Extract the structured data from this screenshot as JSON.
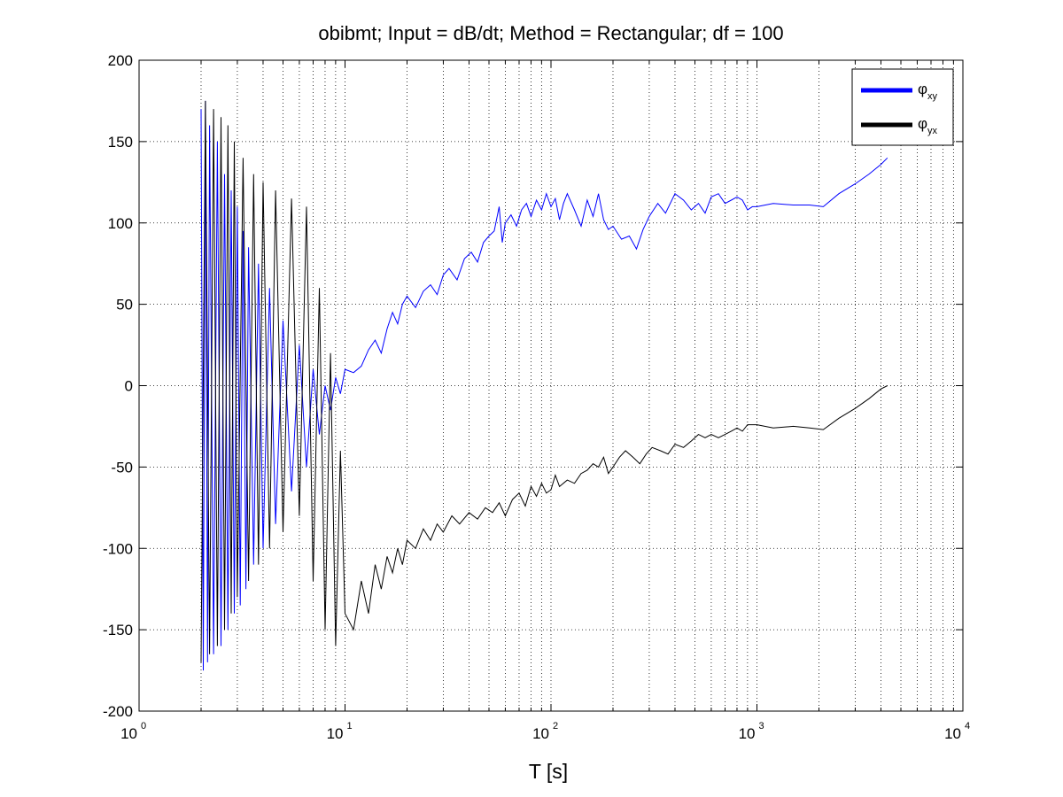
{
  "chart_data": {
    "type": "line",
    "title": "obibmt; Input = dB/dt; Method = Rectangular; df = 100",
    "xlabel": "T [s]",
    "ylabel": "",
    "xscale": "log",
    "xlim": [
      1,
      10000
    ],
    "ylim": [
      -200,
      200
    ],
    "yticks": [
      "-200",
      "-150",
      "-100",
      "-50",
      "0",
      "50",
      "100",
      "150",
      "200"
    ],
    "xticks": [
      {
        "base": "10",
        "exp": "0",
        "value": 1
      },
      {
        "base": "10",
        "exp": "1",
        "value": 10
      },
      {
        "base": "10",
        "exp": "2",
        "value": 100
      },
      {
        "base": "10",
        "exp": "3",
        "value": 1000
      },
      {
        "base": "10",
        "exp": "4",
        "value": 10000
      }
    ],
    "grid": true,
    "legend_position": "top-right",
    "series": [
      {
        "name": "φxy",
        "legend_main": "φ",
        "legend_sub": "xy",
        "color": "#0000ff",
        "x": [
          2.0,
          2.05,
          2.1,
          2.15,
          2.2,
          2.3,
          2.4,
          2.5,
          2.6,
          2.7,
          2.8,
          2.9,
          3.0,
          3.1,
          3.2,
          3.3,
          3.4,
          3.6,
          3.8,
          4.0,
          4.3,
          4.6,
          5.0,
          5.5,
          6.0,
          6.5,
          7.0,
          7.5,
          8.0,
          8.5,
          9.0,
          9.5,
          10.0,
          11.0,
          12.0,
          13.0,
          14.0,
          15.0,
          16.0,
          17.0,
          18.0,
          19.0,
          20.0,
          22.0,
          24.0,
          26.0,
          28.0,
          30.0,
          32.0,
          35.0,
          38.0,
          41.0,
          44.0,
          47.0,
          50.0,
          53.0,
          56.0,
          58.0,
          60.0,
          64.0,
          68.0,
          72.0,
          76.0,
          80.0,
          85.0,
          90.0,
          95.0,
          100.0,
          105.0,
          110.0,
          115.0,
          120.0,
          130.0,
          140.0,
          150.0,
          160.0,
          170.0,
          180.0,
          190.0,
          200.0,
          220.0,
          240.0,
          260.0,
          280.0,
          300.0,
          330.0,
          360.0,
          400.0,
          440.0,
          480.0,
          520.0,
          560.0,
          600.0,
          650.0,
          700.0,
          750.0,
          800.0,
          850.0,
          900.0,
          950.0,
          1000.0,
          1200.0,
          1500.0,
          1800.0,
          2100.0,
          2500.0,
          3000.0,
          3500.0,
          4000.0,
          4300.0
        ],
        "y": [
          170,
          -175,
          175,
          -170,
          160,
          -165,
          150,
          -160,
          130,
          -150,
          120,
          -140,
          110,
          -135,
          95,
          -125,
          85,
          -110,
          75,
          -100,
          60,
          -85,
          40,
          -65,
          25,
          -50,
          10,
          -30,
          0,
          -15,
          5,
          -5,
          10,
          8,
          12,
          22,
          28,
          20,
          35,
          45,
          38,
          50,
          55,
          48,
          58,
          62,
          56,
          68,
          72,
          65,
          78,
          82,
          76,
          88,
          92,
          95,
          110,
          88,
          100,
          105,
          98,
          108,
          112,
          104,
          114,
          108,
          118,
          110,
          115,
          102,
          112,
          118,
          108,
          98,
          114,
          104,
          118,
          102,
          96,
          98,
          90,
          92,
          84,
          96,
          104,
          112,
          106,
          118,
          114,
          108,
          112,
          106,
          116,
          118,
          112,
          114,
          116,
          114,
          108,
          110,
          110,
          112,
          111,
          111,
          110,
          118,
          124,
          130,
          136,
          140
        ]
      },
      {
        "name": "φyx",
        "legend_main": "φ",
        "legend_sub": "yx",
        "color": "#000000",
        "x": [
          2.0,
          2.1,
          2.2,
          2.3,
          2.4,
          2.5,
          2.6,
          2.7,
          2.8,
          2.9,
          3.0,
          3.2,
          3.4,
          3.6,
          3.8,
          4.0,
          4.3,
          4.6,
          5.0,
          5.5,
          6.0,
          6.5,
          7.0,
          7.5,
          8.0,
          8.5,
          9.0,
          9.5,
          10.0,
          11.0,
          12.0,
          13.0,
          14.0,
          15.0,
          16.0,
          17.0,
          18.0,
          19.0,
          20.0,
          22.0,
          24.0,
          26.0,
          28.0,
          30.0,
          33.0,
          36.0,
          40.0,
          44.0,
          48.0,
          52.0,
          56.0,
          60.0,
          65.0,
          70.0,
          75.0,
          80.0,
          85.0,
          90.0,
          95.0,
          100.0,
          105.0,
          110.0,
          120.0,
          130.0,
          140.0,
          150.0,
          160.0,
          170.0,
          180.0,
          190.0,
          200.0,
          215.0,
          230.0,
          250.0,
          270.0,
          290.0,
          310.0,
          340.0,
          370.0,
          400.0,
          440.0,
          480.0,
          520.0,
          560.0,
          600.0,
          650.0,
          700.0,
          750.0,
          800.0,
          850.0,
          900.0,
          1000.0,
          1200.0,
          1500.0,
          1800.0,
          2100.0,
          2500.0,
          3000.0,
          3500.0,
          4000.0,
          4300.0
        ],
        "y": [
          -170,
          175,
          -165,
          170,
          -160,
          165,
          -150,
          160,
          -140,
          150,
          -130,
          140,
          -120,
          130,
          -110,
          125,
          -100,
          120,
          -90,
          115,
          -80,
          110,
          -120,
          60,
          -150,
          20,
          -160,
          -40,
          -140,
          -150,
          -120,
          -140,
          -110,
          -125,
          -105,
          -115,
          -100,
          -110,
          -95,
          -100,
          -88,
          -95,
          -85,
          -90,
          -80,
          -85,
          -78,
          -82,
          -75,
          -78,
          -72,
          -80,
          -70,
          -66,
          -74,
          -62,
          -68,
          -60,
          -66,
          -64,
          -55,
          -62,
          -58,
          -60,
          -54,
          -52,
          -48,
          -50,
          -44,
          -54,
          -50,
          -44,
          -40,
          -44,
          -48,
          -42,
          -38,
          -40,
          -42,
          -36,
          -38,
          -34,
          -30,
          -32,
          -30,
          -32,
          -30,
          -28,
          -26,
          -28,
          -24,
          -24,
          -26,
          -25,
          -26,
          -27,
          -20,
          -14,
          -8,
          -2,
          0
        ]
      }
    ]
  }
}
